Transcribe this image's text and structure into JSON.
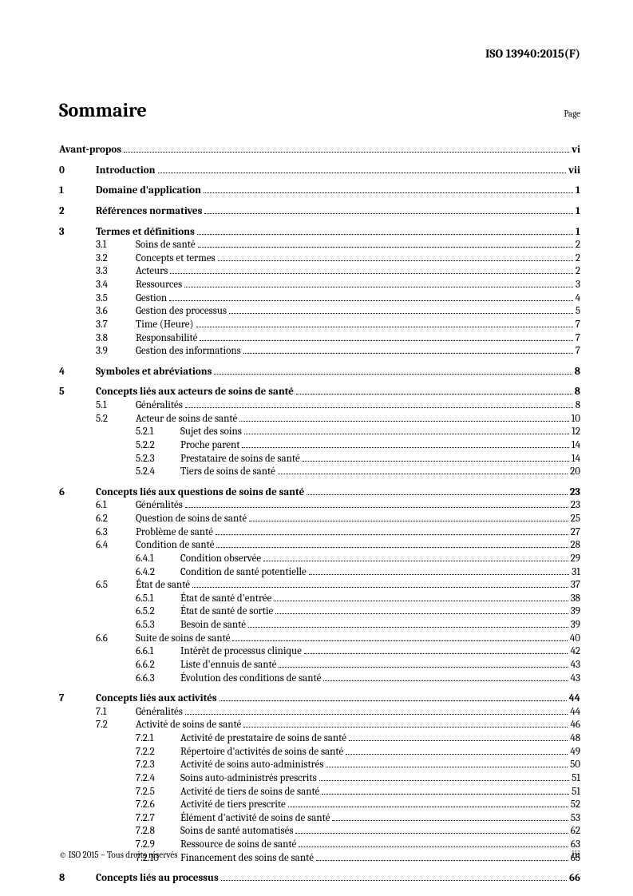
{
  "header": {
    "doc_id": "ISO 13940:2015(F)"
  },
  "title": "Sommaire",
  "page_label": "Page",
  "footer": {
    "copyright": "© ISO 2015 – Tous droits réservés",
    "pagenum": "iii"
  },
  "toc": [
    {
      "level": 0,
      "num": "",
      "title": "Avant-propos",
      "page": "vi",
      "gap": false
    },
    {
      "level": 0,
      "num": "0",
      "title": "Introduction",
      "page": "vii",
      "gap": true
    },
    {
      "level": 0,
      "num": "1",
      "title": "Domaine d'application",
      "page": "1",
      "gap": true
    },
    {
      "level": 0,
      "num": "2",
      "title": "Références normatives",
      "page": "1",
      "gap": true
    },
    {
      "level": 0,
      "num": "3",
      "title": "Termes et définitions",
      "page": "1",
      "gap": true
    },
    {
      "level": 1,
      "num": "3.1",
      "title": "Soins de santé",
      "page": "2"
    },
    {
      "level": 1,
      "num": "3.2",
      "title": "Concepts et termes",
      "page": "2"
    },
    {
      "level": 1,
      "num": "3.3",
      "title": "Acteurs",
      "page": "2"
    },
    {
      "level": 1,
      "num": "3.4",
      "title": "Ressources",
      "page": "3"
    },
    {
      "level": 1,
      "num": "3.5",
      "title": "Gestion",
      "page": "4"
    },
    {
      "level": 1,
      "num": "3.6",
      "title": "Gestion des processus",
      "page": "5"
    },
    {
      "level": 1,
      "num": "3.7",
      "title": "Time (Heure)",
      "page": "7"
    },
    {
      "level": 1,
      "num": "3.8",
      "title": "Responsabilité",
      "page": "7"
    },
    {
      "level": 1,
      "num": "3.9",
      "title": "Gestion des informations",
      "page": "7"
    },
    {
      "level": 0,
      "num": "4",
      "title": "Symboles et abréviations",
      "page": "8",
      "gap": true
    },
    {
      "level": 0,
      "num": "5",
      "title": "Concepts liés aux acteurs de soins de santé",
      "page": "8",
      "gap": true
    },
    {
      "level": 1,
      "num": "5.1",
      "title": "Généralités",
      "page": "8"
    },
    {
      "level": 1,
      "num": "5.2",
      "title": "Acteur de soins de santé",
      "page": "10"
    },
    {
      "level": 2,
      "num": "5.2.1",
      "title": "Sujet des soins",
      "page": "12"
    },
    {
      "level": 2,
      "num": "5.2.2",
      "title": "Proche parent",
      "page": "14"
    },
    {
      "level": 2,
      "num": "5.2.3",
      "title": "Prestataire de soins de santé",
      "page": "14"
    },
    {
      "level": 2,
      "num": "5.2.4",
      "title": "Tiers de soins de santé",
      "page": "20"
    },
    {
      "level": 0,
      "num": "6",
      "title": "Concepts liés aux questions de soins de santé",
      "page": "23",
      "gap": true
    },
    {
      "level": 1,
      "num": "6.1",
      "title": "Généralités",
      "page": "23"
    },
    {
      "level": 1,
      "num": "6.2",
      "title": "Question de soins de santé",
      "page": "25"
    },
    {
      "level": 1,
      "num": "6.3",
      "title": "Problème de santé",
      "page": "27"
    },
    {
      "level": 1,
      "num": "6.4",
      "title": "Condition de santé",
      "page": "28"
    },
    {
      "level": 2,
      "num": "6.4.1",
      "title": "Condition observée",
      "page": "29"
    },
    {
      "level": 2,
      "num": "6.4.2",
      "title": "Condition de santé potentielle",
      "page": "31"
    },
    {
      "level": 1,
      "num": "6.5",
      "title": "État de santé",
      "page": "37"
    },
    {
      "level": 2,
      "num": "6.5.1",
      "title": "État de santé d'entrée",
      "page": "38"
    },
    {
      "level": 2,
      "num": "6.5.2",
      "title": "État de santé de sortie",
      "page": "39"
    },
    {
      "level": 2,
      "num": "6.5.3",
      "title": "Besoin de santé",
      "page": "39"
    },
    {
      "level": 1,
      "num": "6.6",
      "title": "Suite de soins de santé",
      "page": "40"
    },
    {
      "level": 2,
      "num": "6.6.1",
      "title": "Intérêt de processus clinique",
      "page": "42"
    },
    {
      "level": 2,
      "num": "6.6.2",
      "title": "Liste d'ennuis de santé",
      "page": "43"
    },
    {
      "level": 2,
      "num": "6.6.3",
      "title": "Évolution des conditions de santé",
      "page": "43"
    },
    {
      "level": 0,
      "num": "7",
      "title": "Concepts liés aux activités",
      "page": "44",
      "gap": true
    },
    {
      "level": 1,
      "num": "7.1",
      "title": "Généralités",
      "page": "44"
    },
    {
      "level": 1,
      "num": "7.2",
      "title": "Activité de soins de santé",
      "page": "46"
    },
    {
      "level": 2,
      "num": "7.2.1",
      "title": "Activité de prestataire de soins de santé",
      "page": "48"
    },
    {
      "level": 2,
      "num": "7.2.2",
      "title": "Répertoire d'activités de soins de santé",
      "page": "49"
    },
    {
      "level": 2,
      "num": "7.2.3",
      "title": "Activité de soins auto-administrés",
      "page": "50"
    },
    {
      "level": 2,
      "num": "7.2.4",
      "title": "Soins auto-administrés prescrits",
      "page": "51"
    },
    {
      "level": 2,
      "num": "7.2.5",
      "title": "Activité de tiers de soins de santé",
      "page": "51"
    },
    {
      "level": 2,
      "num": "7.2.6",
      "title": "Activité de tiers prescrite",
      "page": "52"
    },
    {
      "level": 2,
      "num": "7.2.7",
      "title": "Élément d'activité de soins de santé",
      "page": "53"
    },
    {
      "level": 2,
      "num": "7.2.8",
      "title": "Soins de santé automatisés",
      "page": "62"
    },
    {
      "level": 2,
      "num": "7.2.9",
      "title": "Ressource de soins de santé",
      "page": "63"
    },
    {
      "level": 2,
      "num": "7.2.10",
      "title": "Financement des soins de santé",
      "page": "65"
    },
    {
      "level": 0,
      "num": "8",
      "title": "Concepts liés au processus",
      "page": "66",
      "gap": true
    }
  ]
}
